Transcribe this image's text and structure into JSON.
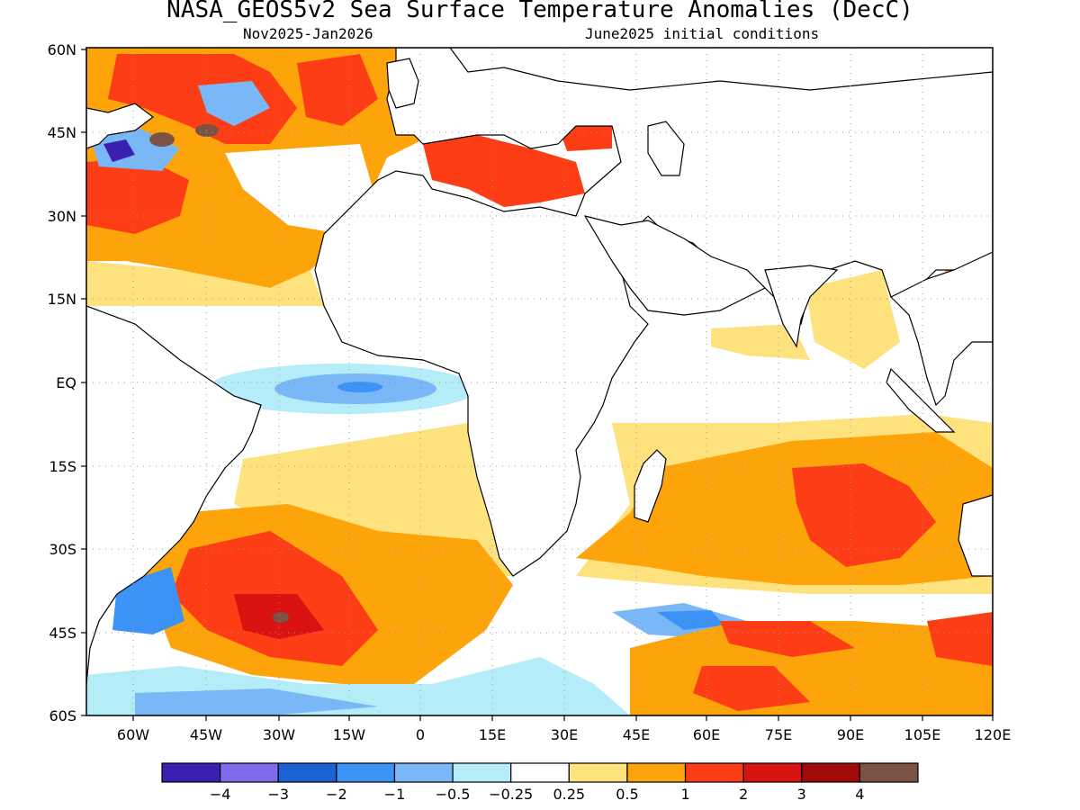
{
  "title": "NASA_GEOS5v2 Sea Surface Temperature Anomalies (DecC)",
  "subtitle_left": "Nov2025-Jan2026",
  "subtitle_right": "June2025 initial conditions",
  "lat_labels": [
    "60N",
    "45N",
    "30N",
    "15N",
    "EQ",
    "15S",
    "30S",
    "45S",
    "60S"
  ],
  "lon_labels": [
    "60W",
    "45W",
    "30W",
    "15W",
    "0",
    "15E",
    "30E",
    "45E",
    "60E",
    "75E",
    "90E",
    "105E",
    "120E"
  ],
  "colorbar": {
    "colors": [
      "#3b1fb0",
      "#7f6aeb",
      "#1a62d1",
      "#3d93f5",
      "#79b7f7",
      "#b4ecf7",
      "#ffffff",
      "#fee27d",
      "#fea40b",
      "#fc3d16",
      "#d91212",
      "#a00a0a",
      "#7b5243"
    ],
    "labels": [
      "-4",
      "-3",
      "-2",
      "-1",
      "-0.5",
      "-0.25",
      "0.25",
      "0.5",
      "1",
      "2",
      "3",
      "4"
    ]
  }
}
